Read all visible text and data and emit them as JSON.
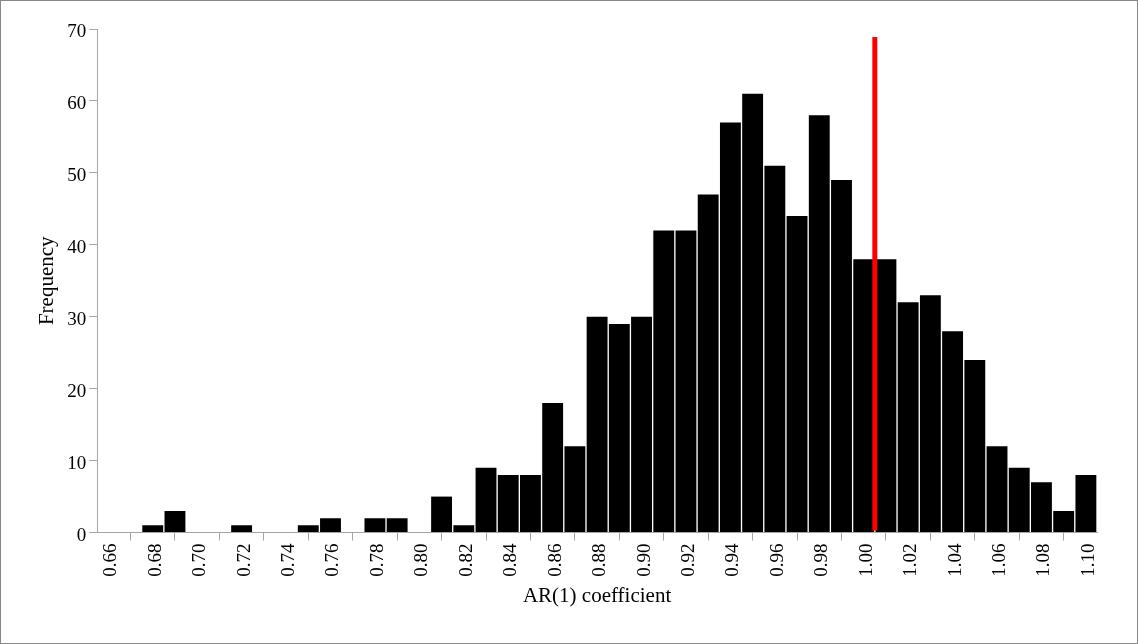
{
  "chart_data": {
    "type": "bar",
    "xlabel": "AR(1) coefficient",
    "ylabel": "Frequency",
    "x": [
      0.66,
      0.67,
      0.68,
      0.69,
      0.7,
      0.71,
      0.72,
      0.73,
      0.74,
      0.75,
      0.76,
      0.77,
      0.78,
      0.79,
      0.8,
      0.81,
      0.82,
      0.83,
      0.84,
      0.85,
      0.86,
      0.87,
      0.88,
      0.89,
      0.9,
      0.91,
      0.92,
      0.93,
      0.94,
      0.95,
      0.96,
      0.97,
      0.98,
      0.99,
      1.0,
      1.01,
      1.02,
      1.03,
      1.04,
      1.05,
      1.06,
      1.07,
      1.08,
      1.09,
      1.1
    ],
    "values": [
      0,
      0,
      1,
      3,
      0,
      0,
      1,
      0,
      0,
      1,
      2,
      0,
      2,
      2,
      0,
      5,
      1,
      9,
      8,
      8,
      18,
      12,
      30,
      29,
      30,
      42,
      42,
      47,
      57,
      61,
      51,
      44,
      58,
      49,
      38,
      38,
      32,
      33,
      28,
      24,
      12,
      9,
      7,
      3,
      8
    ],
    "color": "#000000",
    "xlim": [
      0.655,
      1.105
    ],
    "xticks": [
      {
        "value": 0.66,
        "label": "0.66"
      },
      {
        "value": 0.68,
        "label": "0.68"
      },
      {
        "value": 0.7,
        "label": "0.70"
      },
      {
        "value": 0.72,
        "label": "0.72"
      },
      {
        "value": 0.74,
        "label": "0.74"
      },
      {
        "value": 0.76,
        "label": "0.76"
      },
      {
        "value": 0.78,
        "label": "0.78"
      },
      {
        "value": 0.8,
        "label": "0.80"
      },
      {
        "value": 0.82,
        "label": "0.82"
      },
      {
        "value": 0.84,
        "label": "0.84"
      },
      {
        "value": 0.86,
        "label": "0.86"
      },
      {
        "value": 0.88,
        "label": "0.88"
      },
      {
        "value": 0.9,
        "label": "0.90"
      },
      {
        "value": 0.92,
        "label": "0.92"
      },
      {
        "value": 0.94,
        "label": "0.94"
      },
      {
        "value": 0.96,
        "label": "0.96"
      },
      {
        "value": 0.98,
        "label": "0.98"
      },
      {
        "value": 1.0,
        "label": "1.00"
      },
      {
        "value": 1.02,
        "label": "1.02"
      },
      {
        "value": 1.04,
        "label": "1.04"
      },
      {
        "value": 1.06,
        "label": "1.06"
      },
      {
        "value": 1.08,
        "label": "1.08"
      },
      {
        "value": 1.1,
        "label": "1.10"
      }
    ],
    "ylim": [
      0,
      70
    ],
    "yticks": [
      0,
      10,
      20,
      30,
      40,
      50,
      60,
      70
    ],
    "grid": false,
    "legend": false,
    "ref_lines": [
      {
        "axis": "x",
        "value": 1.005,
        "color": "#ff0000"
      }
    ]
  }
}
